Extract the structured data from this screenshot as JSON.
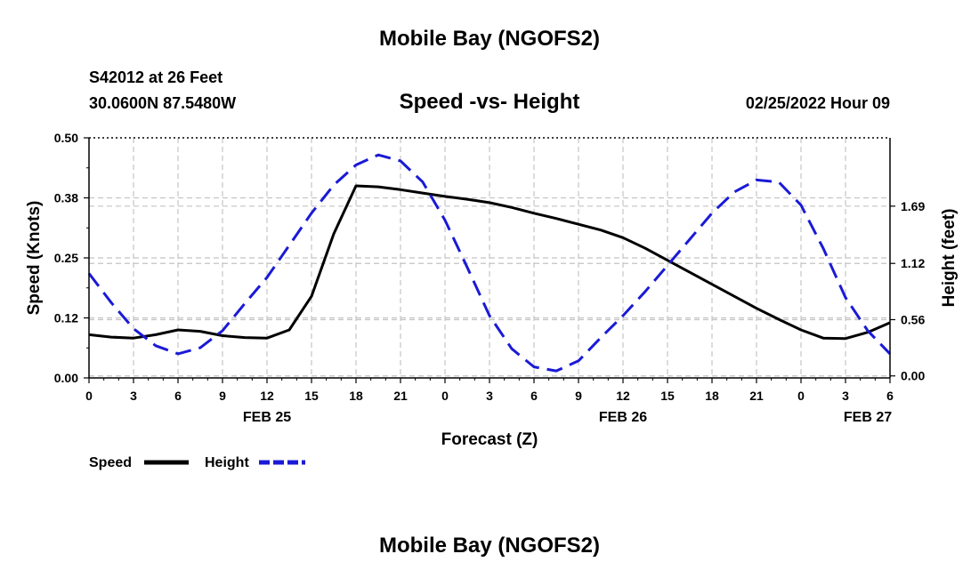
{
  "header": {
    "title": "Mobile Bay (NGOFS2)",
    "station": "S42012 at 26 Feet",
    "coords": "30.0600N  87.5480W",
    "subtitle": "Speed -vs- Height",
    "datetime": "02/25/2022 Hour 09",
    "footer_title": "Mobile Bay (NGOFS2)"
  },
  "chart_data": {
    "type": "line",
    "xlabel": "Forecast (Z)",
    "ylabel_left": "Speed (Knots)",
    "ylabel_right": "Height (feet)",
    "x_range": [
      0,
      54
    ],
    "x_ticks": [
      0,
      3,
      6,
      9,
      12,
      15,
      18,
      21,
      24,
      27,
      30,
      33,
      36,
      39,
      42,
      45,
      48,
      51,
      54
    ],
    "x_tick_labels": [
      "0",
      "3",
      "6",
      "9",
      "12",
      "15",
      "18",
      "21",
      "0",
      "3",
      "6",
      "9",
      "12",
      "15",
      "18",
      "21",
      "0",
      "3",
      "6"
    ],
    "date_labels": [
      {
        "x": 12,
        "text": "FEB 25"
      },
      {
        "x": 36,
        "text": "FEB 26"
      },
      {
        "x": 52.5,
        "text": "FEB 27"
      }
    ],
    "y_left": {
      "range": [
        0,
        0.5
      ],
      "ticks": [
        0,
        0.125,
        0.25,
        0.375,
        0.5
      ],
      "tick_labels": [
        "0.00",
        "0.12",
        "0.25",
        "0.38",
        "0.50"
      ]
    },
    "y_right": {
      "range": [
        -0.02,
        2.37
      ],
      "ticks": [
        0,
        0.56,
        1.12,
        1.69
      ],
      "tick_labels": [
        "0.00",
        "0.56",
        "1.12",
        "1.69"
      ]
    },
    "grid": true,
    "legend_position": "bottom-left",
    "legend": [
      {
        "name": "Speed",
        "color": "#000000",
        "style": "solid"
      },
      {
        "name": "Height",
        "color": "#1a1ad6",
        "style": "dashed"
      }
    ],
    "series": [
      {
        "name": "Speed",
        "axis": "left",
        "color": "#000000",
        "style": "solid",
        "x": [
          0,
          1.5,
          3,
          4.5,
          6,
          7.5,
          9,
          10.5,
          12,
          13.5,
          15,
          16.5,
          18,
          19.5,
          21,
          22.5,
          24,
          25.5,
          27,
          28.5,
          30,
          31.5,
          33,
          34.5,
          36,
          37.5,
          39,
          40.5,
          42,
          43.5,
          45,
          46.5,
          48,
          49.5,
          51,
          52.5,
          54
        ],
        "values": [
          0.09,
          0.085,
          0.083,
          0.09,
          0.1,
          0.097,
          0.088,
          0.084,
          0.083,
          0.1,
          0.17,
          0.3,
          0.4,
          0.398,
          0.392,
          0.385,
          0.378,
          0.372,
          0.365,
          0.355,
          0.343,
          0.332,
          0.32,
          0.308,
          0.292,
          0.27,
          0.245,
          0.22,
          0.195,
          0.17,
          0.145,
          0.122,
          0.1,
          0.083,
          0.082,
          0.095,
          0.115
        ]
      },
      {
        "name": "Height",
        "axis": "right",
        "color": "#1a1ad6",
        "style": "dashed",
        "x": [
          0,
          1.5,
          3,
          4.5,
          6,
          7.5,
          9,
          10.5,
          12,
          13.5,
          15,
          16.5,
          18,
          19.5,
          21,
          22.5,
          24,
          25.5,
          27,
          28.5,
          30,
          31.5,
          33,
          34.5,
          36,
          37.5,
          39,
          40.5,
          42,
          43.5,
          45,
          46.5,
          48,
          49.5,
          51,
          52.5,
          54
        ],
        "values": [
          1.02,
          0.73,
          0.47,
          0.3,
          0.22,
          0.28,
          0.45,
          0.72,
          0.98,
          1.3,
          1.62,
          1.9,
          2.1,
          2.2,
          2.14,
          1.93,
          1.55,
          1.08,
          0.6,
          0.27,
          0.09,
          0.05,
          0.15,
          0.38,
          0.6,
          0.84,
          1.1,
          1.36,
          1.62,
          1.83,
          1.95,
          1.93,
          1.7,
          1.27,
          0.78,
          0.45,
          0.22
        ]
      }
    ]
  }
}
